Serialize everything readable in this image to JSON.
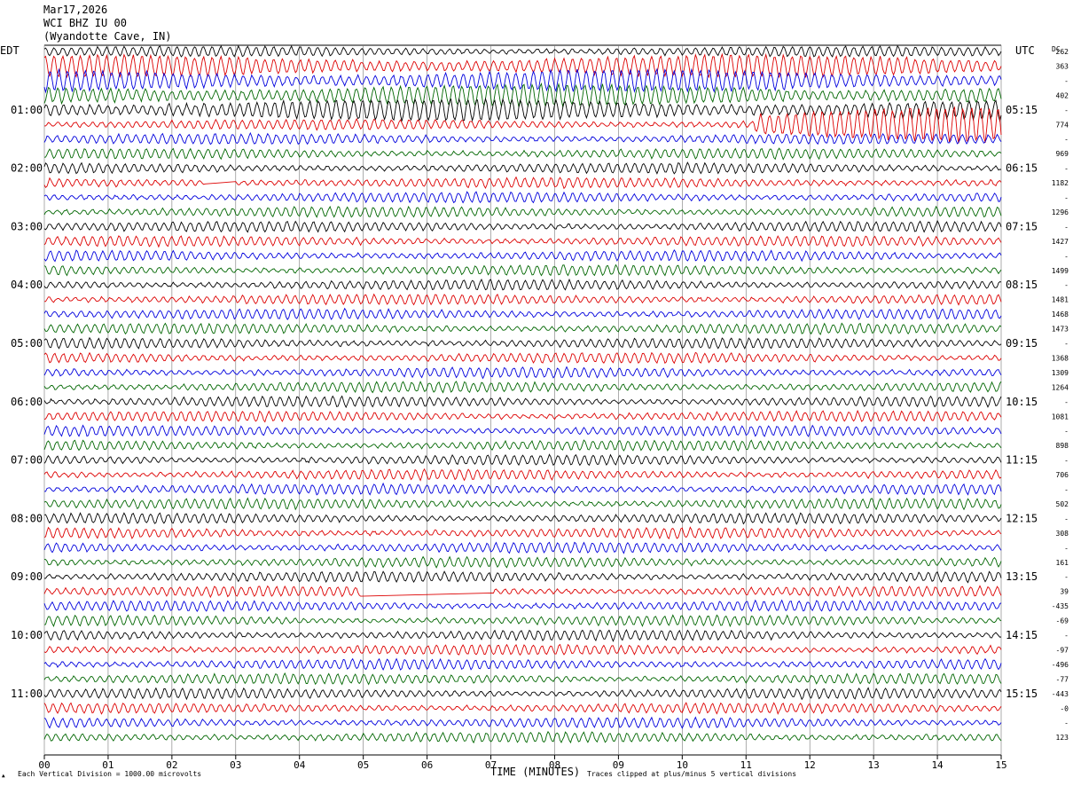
{
  "header": {
    "date": "Mar17,2026",
    "station": "WCI BHZ IU 00",
    "location": "(Wyandotte Cave, IN)"
  },
  "left_zone_label": "EDT",
  "right_zone_label": "UTC",
  "dc_label": "DC",
  "footer": {
    "scale_note": "Each Vertical Division = 1000.00 microvolts",
    "clip_note": "Traces clipped at plus/minus 5 vertical divisions",
    "marker": "▲"
  },
  "chart_data": {
    "type": "line",
    "title": "",
    "xlabel": "TIME (MINUTES)",
    "ylabel": "",
    "x_ticks": [
      "00",
      "01",
      "02",
      "03",
      "04",
      "05",
      "06",
      "07",
      "08",
      "09",
      "10",
      "11",
      "12",
      "13",
      "14",
      "15"
    ],
    "xlim": [
      0,
      15
    ],
    "left_time_labels": [
      {
        "row": 4,
        "text": "01:00"
      },
      {
        "row": 8,
        "text": "02:00"
      },
      {
        "row": 12,
        "text": "03:00"
      },
      {
        "row": 16,
        "text": "04:00"
      },
      {
        "row": 20,
        "text": "05:00"
      },
      {
        "row": 24,
        "text": "06:00"
      },
      {
        "row": 28,
        "text": "07:00"
      },
      {
        "row": 32,
        "text": "08:00"
      },
      {
        "row": 36,
        "text": "09:00"
      },
      {
        "row": 40,
        "text": "10:00"
      },
      {
        "row": 44,
        "text": "11:00"
      }
    ],
    "right_time_labels": [
      {
        "row": 4,
        "text": "05:15"
      },
      {
        "row": 8,
        "text": "06:15"
      },
      {
        "row": 12,
        "text": "07:15"
      },
      {
        "row": 16,
        "text": "08:15"
      },
      {
        "row": 20,
        "text": "09:15"
      },
      {
        "row": 24,
        "text": "10:15"
      },
      {
        "row": 28,
        "text": "11:15"
      },
      {
        "row": 32,
        "text": "12:15"
      },
      {
        "row": 36,
        "text": "13:15"
      },
      {
        "row": 40,
        "text": "14:15"
      },
      {
        "row": 44,
        "text": "15:15"
      }
    ],
    "trace_colors": [
      "#000000",
      "#dd0000",
      "#0000dd",
      "#006600"
    ],
    "dc_offsets": [
      "262",
      "363",
      "-",
      "402",
      "-",
      "774",
      "-",
      "969",
      "-",
      "1182",
      "-",
      "1296",
      "-",
      "1427",
      "-",
      "1499",
      "-",
      "1481",
      "1468",
      "1473",
      "-",
      "1368",
      "1309",
      "1264",
      "-",
      "1081",
      "-",
      "898",
      "-",
      "706",
      "-",
      "502",
      "-",
      "308",
      "-",
      "161",
      "-",
      "39",
      "-435",
      "-69",
      "-",
      "-97",
      "-496",
      "-77",
      "-443",
      "-0",
      "-",
      "123"
    ]
  }
}
